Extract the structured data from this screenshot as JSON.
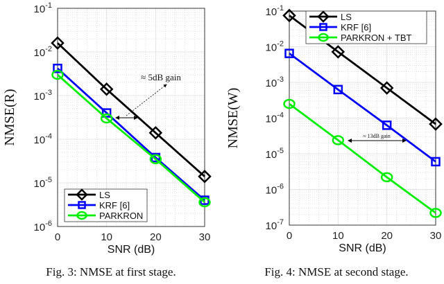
{
  "chart_data": [
    {
      "type": "line",
      "title": "",
      "caption": "Fig. 3: NMSE at first stage.",
      "xlabel": "SNR (dB)",
      "ylabel": "NMSE(R)",
      "yscale": "log",
      "xlim": [
        0,
        30
      ],
      "ylim": [
        1e-06,
        0.1
      ],
      "xticks": [
        0,
        10,
        20,
        30
      ],
      "ytick_exponents": [
        -1,
        -2,
        -3,
        -4,
        -5,
        -6
      ],
      "grid": true,
      "legend_position": "bottom-left",
      "x": [
        0,
        10,
        20,
        30
      ],
      "series": [
        {
          "name": "LS",
          "color": "#000000",
          "marker": "diamond",
          "values": [
            0.016,
            0.0014,
            0.00014,
            1.4e-05
          ]
        },
        {
          "name": "KRF [6]",
          "color": "#0000ff",
          "marker": "square",
          "values": [
            0.0042,
            0.0004,
            3.8e-05,
            4e-06
          ]
        },
        {
          "name": "PARKRON",
          "color": "#00ee00",
          "marker": "circle",
          "values": [
            0.003,
            0.0003,
            3.5e-05,
            3.6e-06
          ]
        }
      ],
      "annotation": "≈ 5dB gain"
    },
    {
      "type": "line",
      "title": "",
      "caption": "Fig. 4: NMSE at second stage.",
      "xlabel": "SNR (dB)",
      "ylabel": "NMSE(W)",
      "yscale": "log",
      "xlim": [
        0,
        30
      ],
      "ylim": [
        1e-07,
        0.1
      ],
      "xticks": [
        0,
        10,
        20,
        30
      ],
      "ytick_exponents": [
        -1,
        -2,
        -3,
        -4,
        -5,
        -6,
        -7
      ],
      "grid": true,
      "legend_position": "top-right",
      "x": [
        0,
        10,
        20,
        30
      ],
      "series": [
        {
          "name": "LS",
          "color": "#000000",
          "marker": "diamond",
          "values": [
            0.075,
            0.0072,
            0.0007,
            6.8e-05
          ]
        },
        {
          "name": "KRF [6]",
          "color": "#0000ff",
          "marker": "square",
          "values": [
            0.0065,
            0.00063,
            6.3e-05,
            6e-06
          ]
        },
        {
          "name": "PARKRON + TBT",
          "color": "#00ee00",
          "marker": "circle",
          "values": [
            0.00025,
            2.4e-05,
            2.2e-06,
            2.2e-07
          ]
        }
      ],
      "annotation": "≈ 13dB gain"
    }
  ]
}
